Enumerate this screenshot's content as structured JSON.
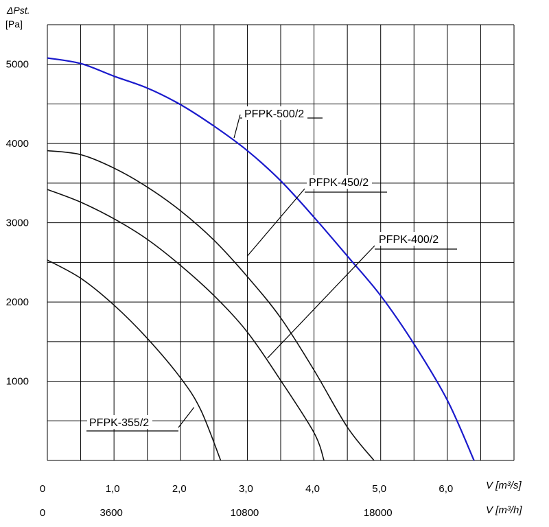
{
  "chart_data": {
    "type": "line",
    "ylabel_symbol": "ΔPst.",
    "ylabel_unit": "[Pa]",
    "xlabel_primary": "V [m³/s]",
    "xlabel_secondary": "V [m³/h]",
    "xlim": [
      0,
      7.0
    ],
    "ylim": [
      0,
      5500
    ],
    "grid": true,
    "x_ticks_primary": [
      {
        "value": 0,
        "label": "0"
      },
      {
        "value": 1.0,
        "label": "1,0"
      },
      {
        "value": 2.0,
        "label": "2,0"
      },
      {
        "value": 3.0,
        "label": "3,0"
      },
      {
        "value": 4.0,
        "label": "4,0"
      },
      {
        "value": 5.0,
        "label": "5,0"
      },
      {
        "value": 6.0,
        "label": "6,0"
      }
    ],
    "x_ticks_secondary": [
      {
        "value": 0,
        "label": "0"
      },
      {
        "value": 1.0,
        "label": "3600"
      },
      {
        "value": 3.0,
        "label": "10800"
      },
      {
        "value": 5.0,
        "label": "18000"
      }
    ],
    "y_ticks": [
      {
        "value": 1000,
        "label": "1000"
      },
      {
        "value": 2000,
        "label": "2000"
      },
      {
        "value": 3000,
        "label": "3000"
      },
      {
        "value": 4000,
        "label": "4000"
      },
      {
        "value": 5000,
        "label": "5000"
      }
    ],
    "series": [
      {
        "name": "PFPK-500/2",
        "color": "#1a1acc",
        "x": [
          0.0,
          0.5,
          1.0,
          1.5,
          2.0,
          2.5,
          3.0,
          3.5,
          4.0,
          4.5,
          5.0,
          5.5,
          6.0,
          6.4
        ],
        "y": [
          5080,
          5010,
          4850,
          4700,
          4490,
          4220,
          3910,
          3530,
          3070,
          2580,
          2080,
          1470,
          760,
          0
        ]
      },
      {
        "name": "PFPK-450/2",
        "color": "#111111",
        "x": [
          0.0,
          0.5,
          1.0,
          1.5,
          2.0,
          2.5,
          3.0,
          3.5,
          4.0,
          4.5,
          4.9
        ],
        "y": [
          3910,
          3860,
          3690,
          3450,
          3150,
          2780,
          2320,
          1800,
          1140,
          420,
          0
        ]
      },
      {
        "name": "PFPK-400/2",
        "color": "#111111",
        "x": [
          0.0,
          0.5,
          1.0,
          1.5,
          2.0,
          2.5,
          3.0,
          3.5,
          4.0,
          4.15
        ],
        "y": [
          3420,
          3260,
          3050,
          2790,
          2460,
          2080,
          1620,
          1010,
          350,
          0
        ]
      },
      {
        "name": "PFPK-355/2",
        "color": "#111111",
        "x": [
          0.0,
          0.5,
          1.0,
          1.5,
          2.0,
          2.3,
          2.6
        ],
        "y": [
          2530,
          2300,
          1960,
          1540,
          1040,
          640,
          0
        ]
      }
    ],
    "annotations": [
      {
        "series": "PFPK-500/2",
        "text": "PFPK-500/2",
        "anchor_x": 2.8,
        "anchor_y": 4070
      },
      {
        "series": "PFPK-450/2",
        "text": "PFPK-450/2",
        "anchor_x": 3.0,
        "anchor_y": 2580
      },
      {
        "series": "PFPK-400/2",
        "text": "PFPK-400/2",
        "anchor_x": 3.3,
        "anchor_y": 1290
      },
      {
        "series": "PFPK-355/2",
        "text": "PFPK-355/2",
        "anchor_x": 2.2,
        "anchor_y": 670
      }
    ]
  }
}
